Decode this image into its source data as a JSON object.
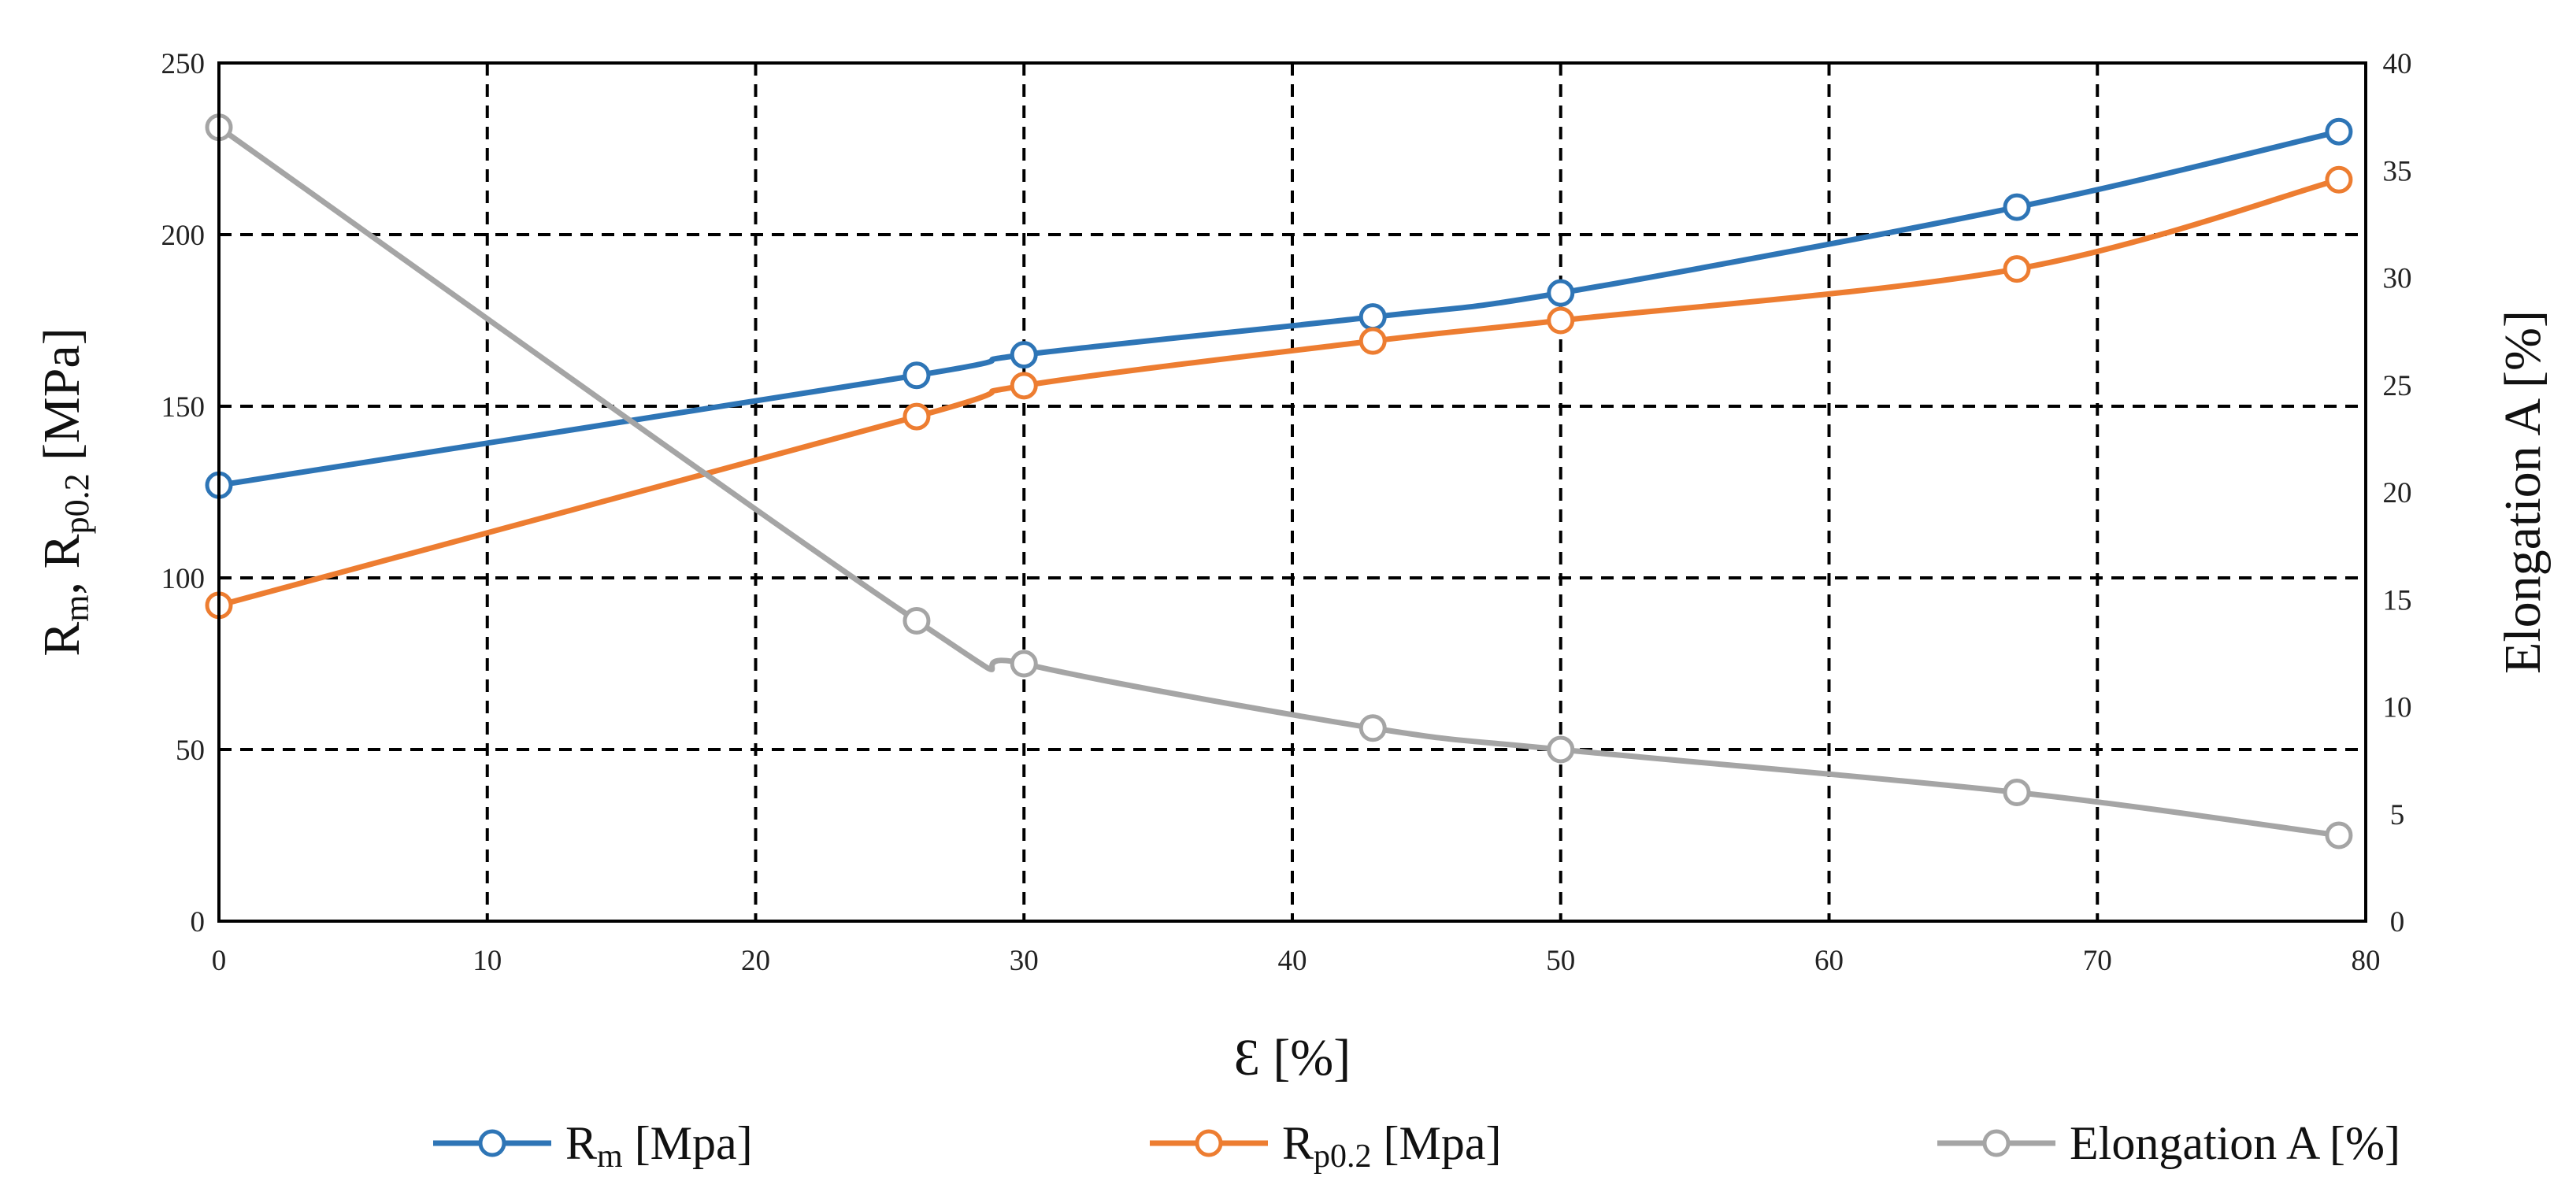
{
  "chart_data": {
    "type": "line",
    "title": "",
    "x": [
      0,
      26,
      30,
      43,
      50,
      67,
      79
    ],
    "xlabel": "Ɛ [%]",
    "xlim": [
      0,
      80
    ],
    "xticks": [
      "0",
      "10",
      "20",
      "30",
      "40",
      "50",
      "60",
      "70",
      "80"
    ],
    "ylabel_main": "R",
    "ylabel_sub1": "m",
    "ylabel_mid": ", R",
    "ylabel_sub2": "p0.2",
    "ylabel_unit": " [MPa]",
    "ylim": [
      0,
      250
    ],
    "yticks": [
      "0",
      "50",
      "100",
      "150",
      "200",
      "250"
    ],
    "y2label": "Elongation A [%]",
    "y2lim": [
      0,
      40
    ],
    "y2ticks": [
      "0",
      "5",
      "10",
      "15",
      "20",
      "25",
      "30",
      "35",
      "40"
    ],
    "grid": true,
    "legend_position": "bottom",
    "series": [
      {
        "name_main": "R",
        "name_sub": "m",
        "name_unit": " [Mpa]",
        "axis": "left",
        "color": "#2e75b6",
        "values": [
          127,
          159,
          165,
          176,
          183,
          208,
          230
        ]
      },
      {
        "name_main": "R",
        "name_sub": "p0.2",
        "name_unit": " [Mpa]",
        "axis": "left",
        "color": "#ed7d31",
        "values": [
          92,
          147,
          156,
          169,
          175,
          190,
          216
        ]
      },
      {
        "name_main": "Elongation A  [%]",
        "name_sub": "",
        "name_unit": "",
        "axis": "right",
        "color": "#a5a5a5",
        "values": [
          37,
          14,
          12,
          9,
          8,
          6,
          4
        ]
      }
    ]
  }
}
